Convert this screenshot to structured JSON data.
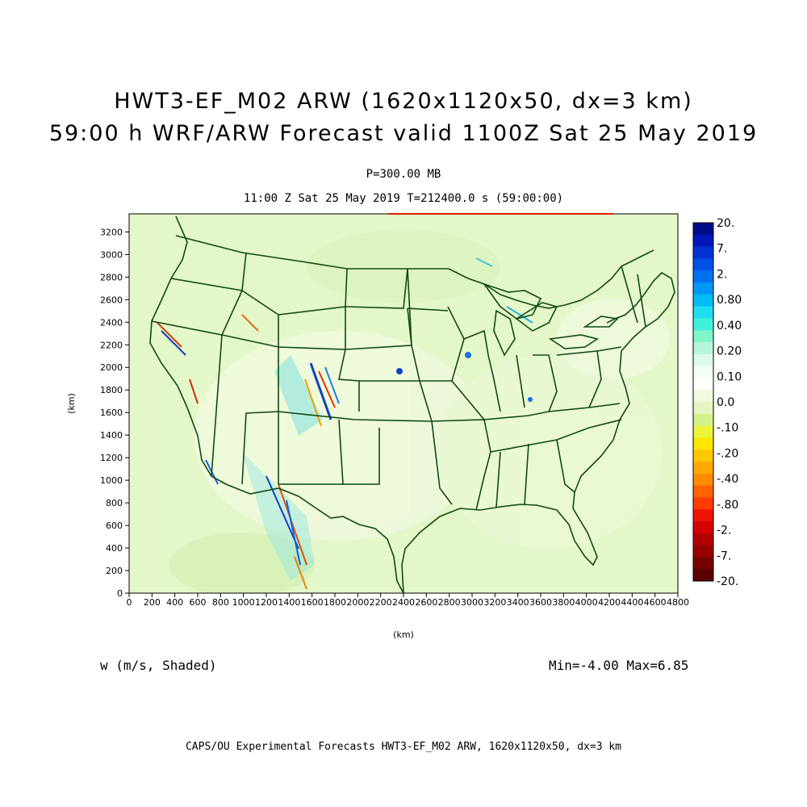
{
  "header": {
    "title1": "HWT3-EF_M02 ARW (1620x1120x50, dx=3 km)",
    "title2": "59:00 h WRF/ARW Forecast valid 1100Z Sat 25 May 2019",
    "level": "P=300.00 MB",
    "time_line": "11:00 Z Sat 25 May 2019    T=212400.0 s (59:00:00)"
  },
  "axes": {
    "xlabel": "(km)",
    "ylabel": "(km)",
    "xticks": [
      "0",
      "200",
      "400",
      "600",
      "800",
      "1000",
      "1200",
      "1400",
      "1600",
      "1800",
      "2000",
      "2200",
      "2400",
      "2600",
      "2800",
      "3000",
      "3200",
      "3400",
      "3600",
      "3800",
      "4000",
      "4200",
      "4400",
      "4600",
      "4800"
    ],
    "yticks": [
      "0",
      "200",
      "400",
      "600",
      "800",
      "1000",
      "1200",
      "1400",
      "1600",
      "1800",
      "2000",
      "2200",
      "2400",
      "2600",
      "2800",
      "3000",
      "3200"
    ]
  },
  "colorbar": {
    "labels": [
      "20.",
      "7.",
      "2.",
      "0.80",
      "0.40",
      "0.20",
      "0.10",
      "0.0",
      "-.10",
      "-.20",
      "-.40",
      "-.80",
      "-2.",
      "-7.",
      "-20."
    ],
    "colors": [
      "#000c8a",
      "#0018b8",
      "#0032d6",
      "#0050e6",
      "#0072f0",
      "#0096f5",
      "#00bef5",
      "#20dcf0",
      "#40f0d8",
      "#80f5cc",
      "#b8f5d8",
      "#dcfae8",
      "#f2fff2",
      "#ffffff",
      "#f0fadc",
      "#e2f5c2",
      "#d2f28c",
      "#e8f53c",
      "#fae600",
      "#ffc800",
      "#ffaa00",
      "#ff8c00",
      "#ff6400",
      "#ff3c00",
      "#ee1400",
      "#d60000",
      "#b40000",
      "#960000",
      "#780000",
      "#5a0000"
    ]
  },
  "footer": {
    "field": "w (m/s, Shaded)",
    "minmax": "Min=-4.00 Max=6.85",
    "credit": "CAPS/OU Experimental Forecasts  HWT3-EF_M02 ARW, 1620x1120x50, dx=3 km"
  }
}
